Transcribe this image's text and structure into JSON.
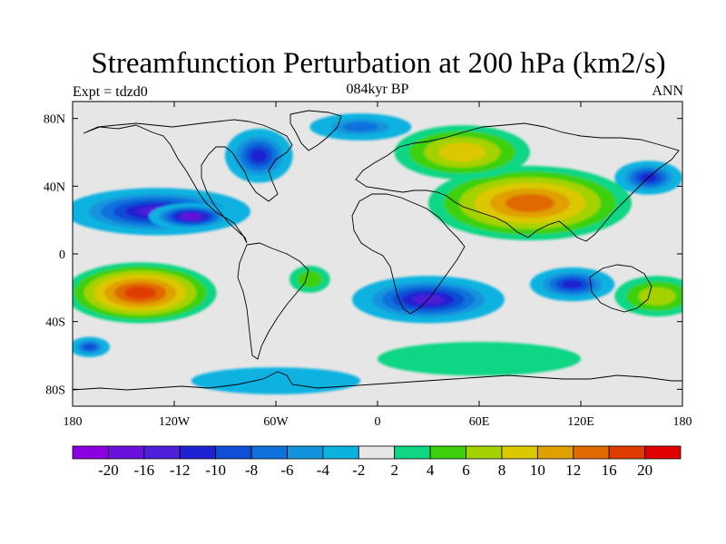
{
  "title": "Streamfunction Perturbation at 200 hPa (km2/s)",
  "subtitle": "084kyr BP",
  "left_label": "Expt = tdzd0",
  "right_label": "ANN",
  "map": {
    "lon_range": [
      -180,
      180
    ],
    "lat_range": [
      -90,
      90
    ],
    "x_ticks": [
      {
        "lon": -180,
        "label": "180"
      },
      {
        "lon": -120,
        "label": "120W"
      },
      {
        "lon": -60,
        "label": "60W"
      },
      {
        "lon": 0,
        "label": "0"
      },
      {
        "lon": 60,
        "label": "60E"
      },
      {
        "lon": 120,
        "label": "120E"
      },
      {
        "lon": 180,
        "label": "180"
      }
    ],
    "y_ticks": [
      {
        "lat": 80,
        "label": "80N"
      },
      {
        "lat": 40,
        "label": "40N"
      },
      {
        "lat": 0,
        "label": "0"
      },
      {
        "lat": -40,
        "label": "40S"
      },
      {
        "lat": -80,
        "label": "80S"
      }
    ],
    "background_color": "#e6e6e6",
    "blobs": [
      {
        "lon": -130,
        "lat": 25,
        "rx": 55,
        "ry": 14,
        "level": -16
      },
      {
        "lon": -110,
        "lat": 22,
        "rx": 25,
        "ry": 8,
        "level": -20
      },
      {
        "lon": -70,
        "lat": 58,
        "rx": 20,
        "ry": 16,
        "level": -12
      },
      {
        "lon": -10,
        "lat": 75,
        "rx": 30,
        "ry": 8,
        "level": -8
      },
      {
        "lon": -170,
        "lat": -55,
        "rx": 12,
        "ry": 6,
        "level": -10
      },
      {
        "lon": 30,
        "lat": -27,
        "rx": 45,
        "ry": 14,
        "level": -16
      },
      {
        "lon": 115,
        "lat": -18,
        "rx": 25,
        "ry": 10,
        "level": -14
      },
      {
        "lon": 160,
        "lat": 45,
        "rx": 20,
        "ry": 10,
        "level": -12
      },
      {
        "lon": -140,
        "lat": -23,
        "rx": 45,
        "ry": 18,
        "level": 16
      },
      {
        "lon": 90,
        "lat": 30,
        "rx": 60,
        "ry": 22,
        "level": 14
      },
      {
        "lon": 50,
        "lat": 60,
        "rx": 40,
        "ry": 16,
        "level": 8
      },
      {
        "lon": 165,
        "lat": -25,
        "rx": 25,
        "ry": 12,
        "level": 6
      },
      {
        "lon": 60,
        "lat": -62,
        "rx": 60,
        "ry": 10,
        "level": 3
      },
      {
        "lon": -60,
        "lat": -75,
        "rx": 50,
        "ry": 8,
        "level": -4
      },
      {
        "lon": -40,
        "lat": -15,
        "rx": 12,
        "ry": 8,
        "level": 4
      }
    ]
  },
  "colorbar": {
    "colors": [
      "#8a00e0",
      "#6a10dc",
      "#4d1fd8",
      "#1e22d2",
      "#0f4ed6",
      "#0f72dc",
      "#1293dc",
      "#0ab2e0",
      "#e6e6e6",
      "#10d684",
      "#3cd00c",
      "#a4d200",
      "#dcc800",
      "#e0a000",
      "#e06a00",
      "#e03c00",
      "#e00000"
    ],
    "labels": [
      "-20",
      "-16",
      "-12",
      "-10",
      "-8",
      "-6",
      "-4",
      "-2",
      "2",
      "4",
      "6",
      "8",
      "10",
      "12",
      "16",
      "20"
    ],
    "levels": [
      -20,
      -16,
      -12,
      -10,
      -8,
      -6,
      -4,
      -2,
      2,
      4,
      6,
      8,
      10,
      12,
      16,
      20
    ]
  }
}
